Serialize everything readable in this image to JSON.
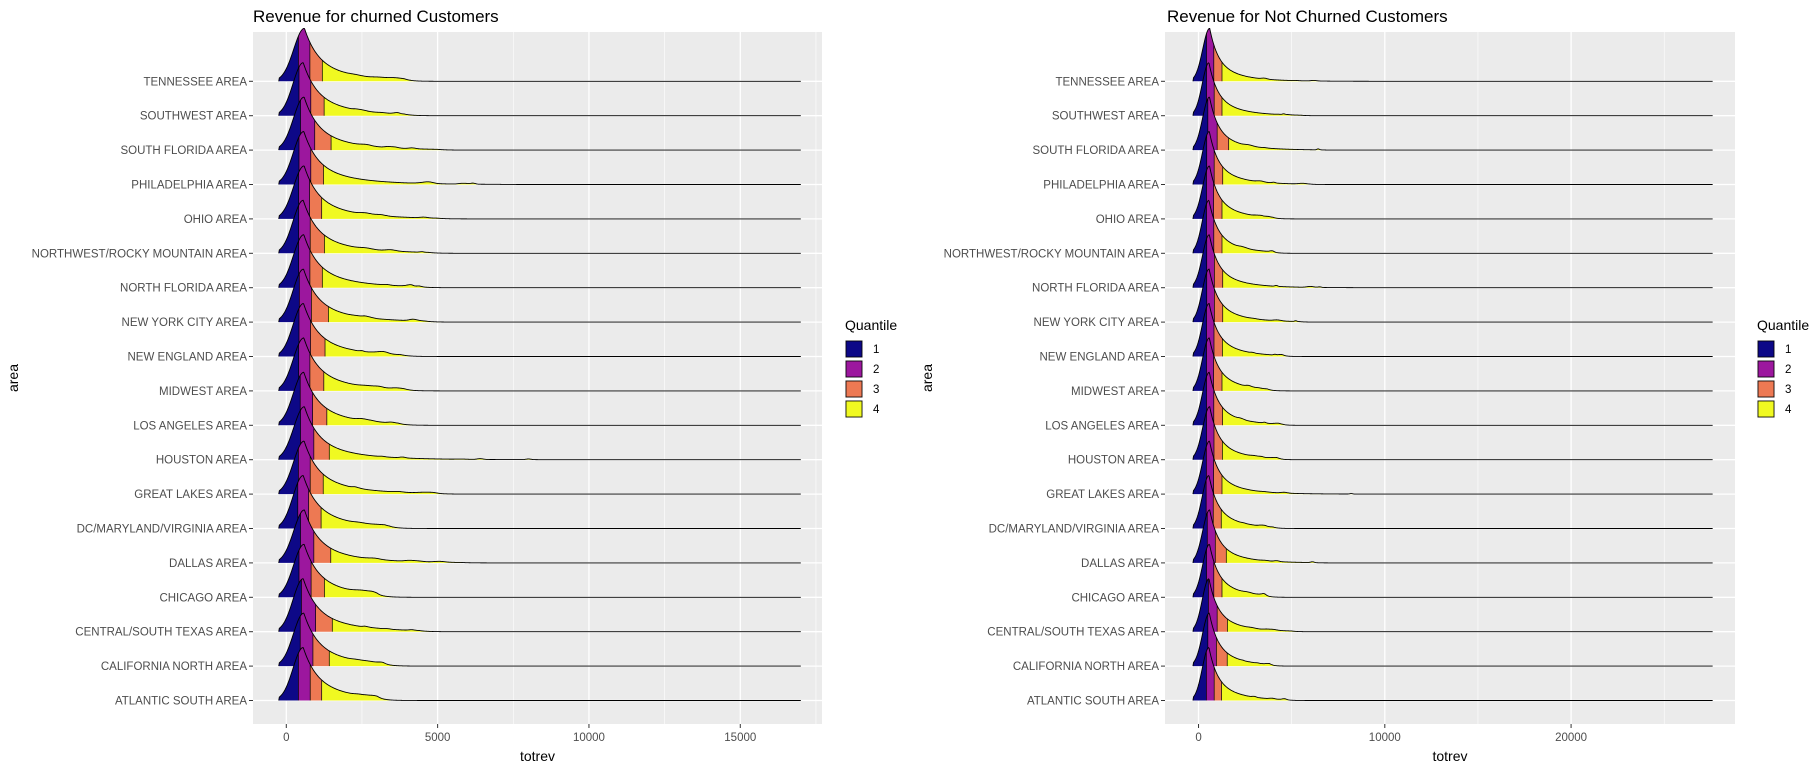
{
  "colors": {
    "panel_bg": "#ebebeb",
    "grid": "#ffffff",
    "q1": "#0d0887",
    "q2": "#9c179e",
    "q3": "#ed7953",
    "q4": "#f0f921",
    "outline": "#000000"
  },
  "chart_data": [
    {
      "type": "ridgeline",
      "title": "Revenue for churned Customers",
      "xlabel": "totrev",
      "ylabel": "area",
      "xlim": [
        -1100,
        17700
      ],
      "xticks": [
        0,
        5000,
        10000,
        15000
      ],
      "xtick_labels": [
        "0",
        "5000",
        "10000",
        "15000"
      ],
      "grid": true,
      "legend": {
        "title": "Quantile",
        "position": "right",
        "entries": [
          "1",
          "2",
          "3",
          "4"
        ]
      },
      "categories": [
        "ATLANTIC SOUTH AREA",
        "CALIFORNIA NORTH AREA",
        "CENTRAL/SOUTH TEXAS AREA",
        "CHICAGO AREA",
        "DALLAS AREA",
        "DC/MARYLAND/VIRGINIA AREA",
        "GREAT LAKES AREA",
        "HOUSTON AREA",
        "LOS ANGELES AREA",
        "MIDWEST AREA",
        "NEW ENGLAND AREA",
        "NEW YORK CITY AREA",
        "NORTH FLORIDA AREA",
        "NORTHWEST/ROCKY MOUNTAIN AREA",
        "OHIO AREA",
        "PHILADELPHIA AREA",
        "SOUTH FLORIDA AREA",
        "SOUTHWEST AREA",
        "TENNESSEE AREA"
      ],
      "density_range": [
        -250,
        17000
      ],
      "peaks": [
        560,
        580,
        560,
        590,
        600,
        560,
        590,
        600,
        580,
        580,
        570,
        570,
        580,
        560,
        590,
        580,
        590,
        560,
        600
      ],
      "quartiles": [
        [
          400,
          790,
          1170
        ],
        [
          460,
          880,
          1420
        ],
        [
          500,
          970,
          1520
        ],
        [
          420,
          820,
          1260
        ],
        [
          470,
          910,
          1470
        ],
        [
          380,
          740,
          1150
        ],
        [
          400,
          790,
          1220
        ],
        [
          470,
          910,
          1420
        ],
        [
          460,
          870,
          1340
        ],
        [
          410,
          780,
          1240
        ],
        [
          420,
          800,
          1280
        ],
        [
          430,
          830,
          1390
        ],
        [
          410,
          780,
          1190
        ],
        [
          410,
          790,
          1260
        ],
        [
          410,
          770,
          1170
        ],
        [
          420,
          810,
          1230
        ],
        [
          470,
          940,
          1480
        ],
        [
          420,
          810,
          1250
        ],
        [
          400,
          780,
          1190
        ]
      ],
      "tail_end": [
        3000,
        3200,
        4400,
        3000,
        5800,
        3400,
        5000,
        10500,
        3700,
        3900,
        3800,
        4600,
        4400,
        4700,
        5000,
        7000,
        5000,
        3900,
        3900
      ]
    },
    {
      "type": "ridgeline",
      "title": "Revenue for Not Churned Customers",
      "xlabel": "totrev",
      "ylabel": "area",
      "xlim": [
        -1800,
        28800
      ],
      "xticks": [
        0,
        10000,
        20000
      ],
      "xtick_labels": [
        "0",
        "10000",
        "20000"
      ],
      "grid": true,
      "legend": {
        "title": "Quantile",
        "position": "right",
        "entries": [
          "1",
          "2",
          "3",
          "4"
        ]
      },
      "categories": [
        "ATLANTIC SOUTH AREA",
        "CALIFORNIA NORTH AREA",
        "CENTRAL/SOUTH TEXAS AREA",
        "CHICAGO AREA",
        "DALLAS AREA",
        "DC/MARYLAND/VIRGINIA AREA",
        "GREAT LAKES AREA",
        "HOUSTON AREA",
        "LOS ANGELES AREA",
        "MIDWEST AREA",
        "NEW ENGLAND AREA",
        "NEW YORK CITY AREA",
        "NORTH FLORIDA AREA",
        "NORTHWEST/ROCKY MOUNTAIN AREA",
        "OHIO AREA",
        "PHILADELPHIA AREA",
        "SOUTH FLORIDA AREA",
        "SOUTHWEST AREA",
        "TENNESSEE AREA"
      ],
      "density_range": [
        -300,
        27600
      ],
      "peaks": [
        560,
        580,
        560,
        590,
        600,
        560,
        590,
        600,
        580,
        580,
        570,
        570,
        580,
        560,
        590,
        580,
        590,
        560,
        600
      ],
      "quartiles": [
        [
          420,
          840,
          1240
        ],
        [
          500,
          960,
          1540
        ],
        [
          530,
          1000,
          1550
        ],
        [
          430,
          820,
          1260
        ],
        [
          470,
          900,
          1490
        ],
        [
          410,
          790,
          1220
        ],
        [
          420,
          810,
          1260
        ],
        [
          430,
          830,
          1280
        ],
        [
          430,
          820,
          1290
        ],
        [
          430,
          810,
          1260
        ],
        [
          430,
          830,
          1280
        ],
        [
          440,
          850,
          1300
        ],
        [
          440,
          850,
          1300
        ],
        [
          430,
          820,
          1260
        ],
        [
          430,
          810,
          1260
        ],
        [
          440,
          840,
          1300
        ],
        [
          500,
          1000,
          1620
        ],
        [
          430,
          840,
          1260
        ],
        [
          430,
          820,
          1260
        ]
      ],
      "tail_end": [
        4700,
        3800,
        5000,
        3600,
        6200,
        4000,
        10000,
        4200,
        4300,
        3700,
        4500,
        5400,
        8800,
        4000,
        4000,
        6000,
        6600,
        5500,
        12500
      ]
    }
  ]
}
